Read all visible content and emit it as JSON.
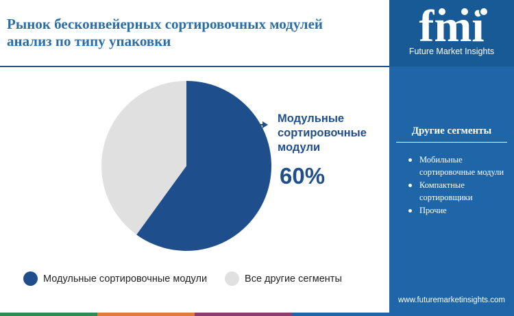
{
  "title": {
    "line1": "Рынок бесконвейерных сортировочных модулей",
    "line2": "анализ по типу упаковки"
  },
  "logo": {
    "wordmark": "fmi",
    "caption": "Future Market Insights"
  },
  "sidebar": {
    "heading": "Другие сегменты",
    "items": [
      "Мобильные сортировочные модули",
      "Компактные сортировщики",
      "Прочие"
    ],
    "website": "www.futuremarketinsights.com"
  },
  "callout": {
    "label": "Модульные сортировочные модули",
    "value": "60%"
  },
  "colors": {
    "primary": "#1f4e8c",
    "other": "#e0e0e0",
    "title": "#2b6ea6",
    "sidebar": "#1f66a8",
    "bottom_bar": [
      "#2e8b57",
      "#e07b39",
      "#8e3b6e",
      "#1f66a8"
    ]
  },
  "chart_data": {
    "type": "pie",
    "categories": [
      "Модульные сортировочные модули",
      "Все другие сегменты"
    ],
    "values": [
      60,
      40
    ],
    "colors": [
      "#1f4e8c",
      "#e0e0e0"
    ],
    "title": "",
    "legend": "bottom"
  }
}
